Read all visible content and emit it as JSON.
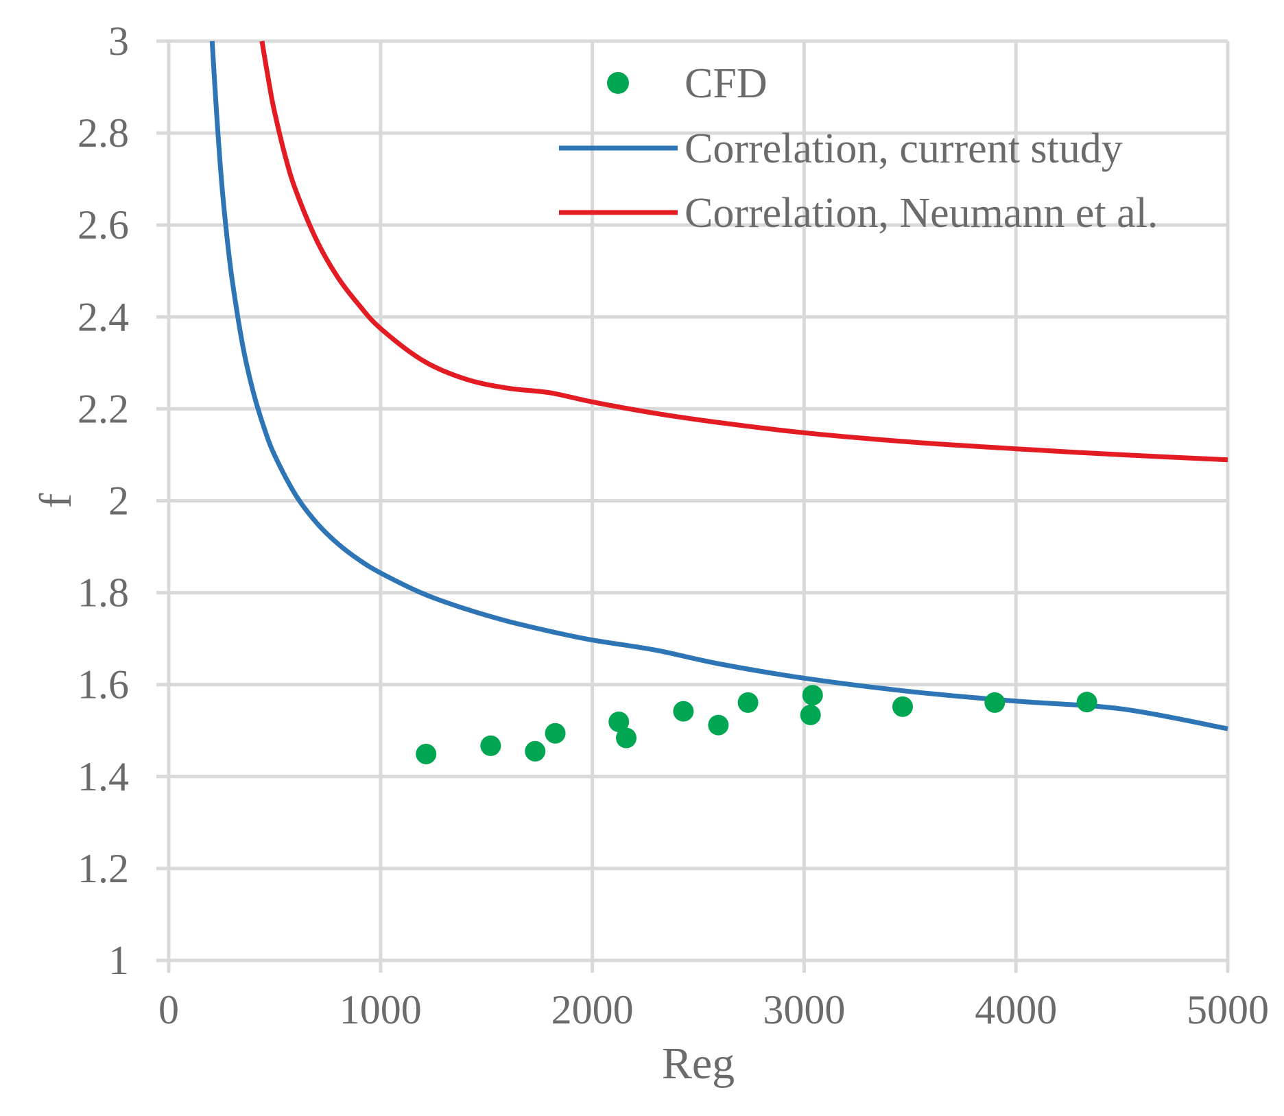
{
  "chart_data": {
    "type": "scatter+line",
    "title": "",
    "xlabel": "Reg",
    "ylabel": "f",
    "xlim": [
      0,
      5000
    ],
    "ylim": [
      1,
      3
    ],
    "xticks": [
      0,
      1000,
      2000,
      3000,
      4000,
      5000
    ],
    "yticks": [
      1,
      1.2,
      1.4,
      1.6,
      1.8,
      2,
      2.2,
      2.4,
      2.6,
      2.8,
      3
    ],
    "ytick_labels": [
      "1",
      "1.2",
      "1.4",
      "1.6",
      "1.8",
      "2",
      "2.2",
      "2.4",
      "2.6",
      "2.8",
      "3"
    ],
    "grid": true,
    "legend_position": "top-right",
    "series": [
      {
        "name": "CFD",
        "kind": "scatter",
        "color": "#00a651",
        "points": [
          {
            "x": 1215,
            "y": 1.449
          },
          {
            "x": 1520,
            "y": 1.467
          },
          {
            "x": 1730,
            "y": 1.455
          },
          {
            "x": 1825,
            "y": 1.494
          },
          {
            "x": 2125,
            "y": 1.519
          },
          {
            "x": 2160,
            "y": 1.484
          },
          {
            "x": 2430,
            "y": 1.542
          },
          {
            "x": 2595,
            "y": 1.512
          },
          {
            "x": 2735,
            "y": 1.561
          },
          {
            "x": 3030,
            "y": 1.534
          },
          {
            "x": 3040,
            "y": 1.577
          },
          {
            "x": 3465,
            "y": 1.552
          },
          {
            "x": 3900,
            "y": 1.561
          },
          {
            "x": 4335,
            "y": 1.562
          }
        ]
      },
      {
        "name": "Correlation, current study",
        "kind": "line",
        "color": "#2e75b6",
        "x": [
          205,
          225,
          250,
          275,
          300,
          350,
          400,
          450,
          500,
          600,
          700,
          800,
          900,
          1000,
          1200,
          1400,
          1600,
          1800,
          2000,
          2300,
          2600,
          3000,
          3500,
          4000,
          4500,
          5000
        ],
        "y": [
          3.0,
          2.85,
          2.692,
          2.574,
          2.479,
          2.336,
          2.235,
          2.159,
          2.099,
          2.012,
          1.951,
          1.906,
          1.871,
          1.843,
          1.798,
          1.765,
          1.738,
          1.716,
          1.697,
          1.675,
          1.645,
          1.614,
          1.585,
          1.564,
          1.547,
          1.504
        ]
      },
      {
        "name": "Correlation, Neumann et al.",
        "kind": "line",
        "color": "#e31b23",
        "x": [
          440,
          475,
          500,
          550,
          600,
          700,
          800,
          900,
          1000,
          1200,
          1400,
          1600,
          1800,
          2000,
          2300,
          2600,
          3000,
          3500,
          4000,
          4500,
          5000
        ],
        "y": [
          3.0,
          2.905,
          2.845,
          2.75,
          2.675,
          2.565,
          2.485,
          2.425,
          2.375,
          2.305,
          2.265,
          2.245,
          2.235,
          2.215,
          2.19,
          2.17,
          2.148,
          2.128,
          2.113,
          2.1,
          2.089
        ]
      }
    ]
  }
}
